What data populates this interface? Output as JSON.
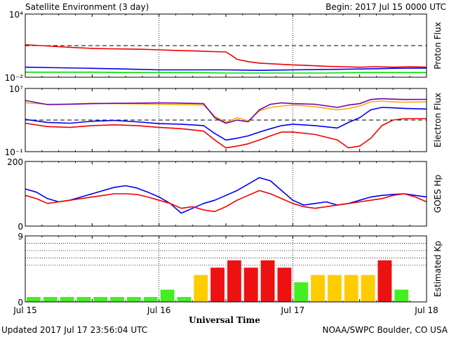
{
  "header": {
    "title": "Satellite Environment (3 day)",
    "begin": "Begin:  2017 Jul 15 0000 UTC"
  },
  "footer": {
    "updated": "Updated 2017 Jul 17 23:56:04 UTC",
    "source": "NOAA/SWPC Boulder, CO USA"
  },
  "colors": {
    "red": "#ee0000",
    "blue": "#0000ee",
    "green": "#00dd00",
    "purple": "#6a00b0",
    "orange": "#ffaa00",
    "kp_green": "#44ee22",
    "kp_yellow": "#ffcc00",
    "kp_red": "#ee1111"
  },
  "chart_data": [
    {
      "id": "proton",
      "type": "line",
      "ylabel": "Proton Flux",
      "y_scale": "log",
      "ylim": [
        0.01,
        10000
      ],
      "y_ticks": [
        {
          "v": 10000,
          "label": "10⁴"
        },
        {
          "v": 0.01,
          "label": "10⁻²"
        }
      ],
      "threshold": 10,
      "x_unit": "hours",
      "xlim": [
        0,
        72
      ],
      "series": [
        {
          "color": "red",
          "x": [
            0,
            3,
            6,
            9,
            12,
            15,
            18,
            21,
            24,
            27,
            30,
            33,
            36,
            37,
            38,
            40,
            42,
            45,
            48,
            51,
            54,
            57,
            60,
            63,
            66,
            69,
            72
          ],
          "y": [
            12,
            10,
            8,
            6.5,
            5.5,
            5,
            4.8,
            4.5,
            4,
            3.5,
            3.2,
            2.8,
            2.5,
            1.2,
            0.5,
            0.3,
            0.22,
            0.18,
            0.15,
            0.13,
            0.11,
            0.1,
            0.09,
            0.1,
            0.09,
            0.1,
            0.09
          ]
        },
        {
          "color": "blue",
          "x": [
            0,
            6,
            12,
            18,
            24,
            30,
            36,
            42,
            48,
            54,
            60,
            66,
            72
          ],
          "y": [
            0.09,
            0.08,
            0.07,
            0.06,
            0.05,
            0.05,
            0.05,
            0.045,
            0.05,
            0.055,
            0.06,
            0.07,
            0.075
          ]
        },
        {
          "color": "green",
          "x": [
            0,
            6,
            12,
            18,
            24,
            30,
            36,
            42,
            48,
            54,
            60,
            66,
            72
          ],
          "y": [
            0.03,
            0.03,
            0.03,
            0.028,
            0.028,
            0.028,
            0.025,
            0.025,
            0.025,
            0.025,
            0.028,
            0.028,
            0.028
          ]
        }
      ]
    },
    {
      "id": "electron",
      "type": "line",
      "ylabel": "Electron Flux",
      "y_scale": "log",
      "ylim": [
        0.1,
        10000000
      ],
      "y_ticks": [
        {
          "v": 10000000,
          "label": "10⁷"
        },
        {
          "v": 0.1,
          "label": "10⁻¹"
        }
      ],
      "threshold": 1000,
      "x_unit": "hours",
      "xlim": [
        0,
        72
      ],
      "series": [
        {
          "color": "orange",
          "x": [
            0,
            4,
            8,
            12,
            16,
            20,
            24,
            28,
            32,
            34,
            36,
            38,
            40,
            42,
            44,
            46,
            48,
            52,
            56,
            58,
            60,
            62,
            64,
            66,
            68,
            72
          ],
          "y": [
            150000,
            100000,
            110000,
            130000,
            120000,
            110000,
            100000,
            90000,
            80000,
            3000,
            500,
            2000,
            800,
            15000,
            40000,
            60000,
            80000,
            50000,
            20000,
            30000,
            60000,
            200000,
            250000,
            200000,
            180000,
            200000
          ]
        },
        {
          "color": "purple",
          "x": [
            0,
            4,
            8,
            12,
            16,
            20,
            24,
            28,
            32,
            34,
            36,
            38,
            40,
            42,
            44,
            46,
            48,
            52,
            56,
            58,
            60,
            62,
            64,
            66,
            68,
            72
          ],
          "y": [
            300000,
            90000,
            100000,
            120000,
            130000,
            140000,
            150000,
            140000,
            120000,
            2000,
            400,
            1000,
            600,
            20000,
            100000,
            150000,
            120000,
            100000,
            40000,
            80000,
            120000,
            400000,
            500000,
            450000,
            400000,
            420000
          ]
        },
        {
          "color": "blue",
          "x": [
            0,
            4,
            8,
            12,
            16,
            20,
            24,
            28,
            32,
            34,
            36,
            38,
            40,
            42,
            44,
            46,
            48,
            52,
            56,
            58,
            60,
            62,
            64,
            66,
            68,
            72
          ],
          "y": [
            1200,
            500,
            400,
            700,
            900,
            600,
            350,
            300,
            200,
            20,
            3,
            5,
            10,
            30,
            80,
            200,
            300,
            200,
            100,
            500,
            2000,
            20000,
            40000,
            35000,
            30000,
            25000
          ]
        },
        {
          "color": "red",
          "x": [
            0,
            4,
            8,
            12,
            16,
            20,
            24,
            28,
            32,
            34,
            36,
            38,
            40,
            42,
            44,
            46,
            48,
            52,
            56,
            58,
            60,
            62,
            64,
            66,
            68,
            72
          ],
          "y": [
            400,
            150,
            120,
            200,
            250,
            200,
            120,
            80,
            40,
            3,
            0.3,
            0.5,
            1,
            3,
            10,
            30,
            30,
            15,
            3,
            0.3,
            0.5,
            5,
            200,
            1000,
            1500,
            1500
          ]
        }
      ]
    },
    {
      "id": "hp",
      "type": "line",
      "ylabel": "GOES Hp",
      "y_scale": "linear",
      "ylim": [
        0,
        200
      ],
      "y_ticks": [
        {
          "v": 200,
          "label": "200"
        },
        {
          "v": 0,
          "label": "0"
        }
      ],
      "x_unit": "hours",
      "xlim": [
        0,
        72
      ],
      "series": [
        {
          "color": "blue",
          "x": [
            0,
            2,
            4,
            6,
            8,
            10,
            12,
            14,
            16,
            18,
            20,
            22,
            24,
            26,
            28,
            30,
            32,
            34,
            36,
            38,
            40,
            42,
            44,
            46,
            48,
            50,
            52,
            54,
            56,
            58,
            60,
            62,
            64,
            66,
            68,
            70,
            72
          ],
          "y": [
            115,
            105,
            85,
            75,
            80,
            90,
            100,
            110,
            120,
            125,
            118,
            105,
            90,
            70,
            40,
            55,
            70,
            80,
            95,
            110,
            130,
            150,
            140,
            110,
            80,
            65,
            70,
            75,
            65,
            70,
            80,
            90,
            95,
            98,
            100,
            95,
            90
          ]
        },
        {
          "color": "red",
          "x": [
            0,
            2,
            4,
            6,
            8,
            10,
            12,
            14,
            16,
            18,
            20,
            22,
            24,
            26,
            28,
            30,
            32,
            34,
            36,
            38,
            40,
            42,
            44,
            46,
            48,
            50,
            52,
            54,
            56,
            58,
            60,
            62,
            64,
            66,
            68,
            70,
            72
          ],
          "y": [
            95,
            85,
            70,
            75,
            80,
            85,
            90,
            95,
            100,
            100,
            98,
            90,
            80,
            70,
            55,
            60,
            50,
            45,
            60,
            80,
            95,
            110,
            100,
            85,
            70,
            60,
            55,
            60,
            65,
            70,
            75,
            80,
            85,
            95,
            100,
            90,
            75
          ]
        }
      ]
    },
    {
      "id": "kp",
      "type": "bar",
      "ylabel": "Estimated Kp",
      "ylim": [
        0,
        9
      ],
      "y_ticks": [
        {
          "v": 9,
          "label": "9"
        },
        {
          "v": 0,
          "label": "0"
        }
      ],
      "interval_hours": 3,
      "values": [
        0.67,
        0.67,
        0.67,
        0.67,
        0.67,
        0.67,
        0.67,
        0.67,
        1.67,
        0.67,
        3.67,
        4.67,
        5.67,
        4.67,
        5.67,
        4.67,
        2.67,
        3.67,
        3.67,
        3.67,
        3.67,
        5.67,
        1.67
      ],
      "levels": [
        "green",
        "green",
        "green",
        "green",
        "green",
        "green",
        "green",
        "green",
        "green",
        "green",
        "yellow",
        "red",
        "red",
        "red",
        "red",
        "red",
        "green",
        "yellow",
        "yellow",
        "yellow",
        "yellow",
        "red",
        "green"
      ],
      "grid_levels": [
        5,
        6,
        7,
        8,
        9
      ]
    }
  ],
  "x_axis": {
    "label": "Universal Time",
    "ticks": [
      {
        "h": 0,
        "label": "Jul 15"
      },
      {
        "h": 24,
        "label": "Jul 16"
      },
      {
        "h": 48,
        "label": "Jul 17"
      },
      {
        "h": 72,
        "label": "Jul 18"
      }
    ],
    "day_divider_hours": [
      24,
      48
    ]
  }
}
